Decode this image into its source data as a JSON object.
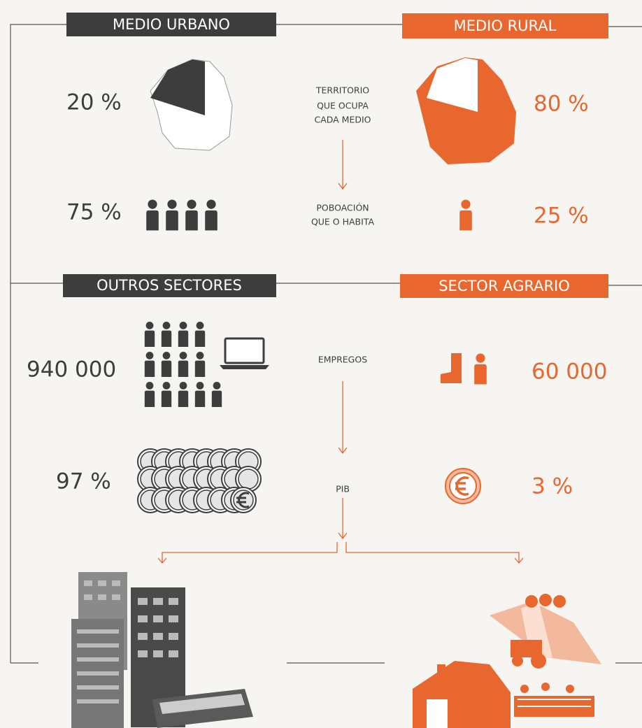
{
  "sections": {
    "urban": "MEDIO URBANO",
    "rural": "MEDIO RURAL",
    "other_sectors": "OUTROS SECTORES",
    "agrarian": "SECTOR AGRARIO"
  },
  "rows": [
    {
      "urban": "20 %",
      "label": [
        "TERRITORIO",
        "QUE OCUPA",
        "CADA MEDIO"
      ],
      "rural": "80 %"
    },
    {
      "urban": "75 %",
      "label": [
        "POBOACIÓN",
        "QUE O HABITA"
      ],
      "rural": "25 %"
    },
    {
      "urban": "940 000",
      "label": [
        "EMPREGOS"
      ],
      "rural": "60 000"
    },
    {
      "urban": "97 %",
      "label": [
        "PIB"
      ],
      "rural": "3 %"
    }
  ]
}
